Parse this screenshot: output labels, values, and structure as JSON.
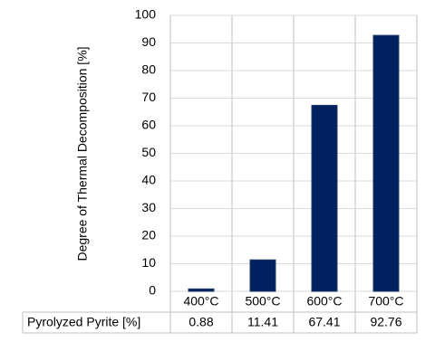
{
  "chart_data": {
    "type": "bar",
    "y_label": "Degree of Thermal Decomposition [%]",
    "categories": [
      "400°C",
      "500°C",
      "600°C",
      "700°C"
    ],
    "series": [
      {
        "name": "Pyrolyzed Pyrite [%]",
        "color": "#002060",
        "values": [
          0.88,
          11.41,
          67.41,
          92.76
        ]
      }
    ],
    "ylim": [
      0,
      100
    ],
    "yticks": [
      0,
      10,
      20,
      30,
      40,
      50,
      60,
      70,
      80,
      90,
      100
    ],
    "grid": true
  }
}
